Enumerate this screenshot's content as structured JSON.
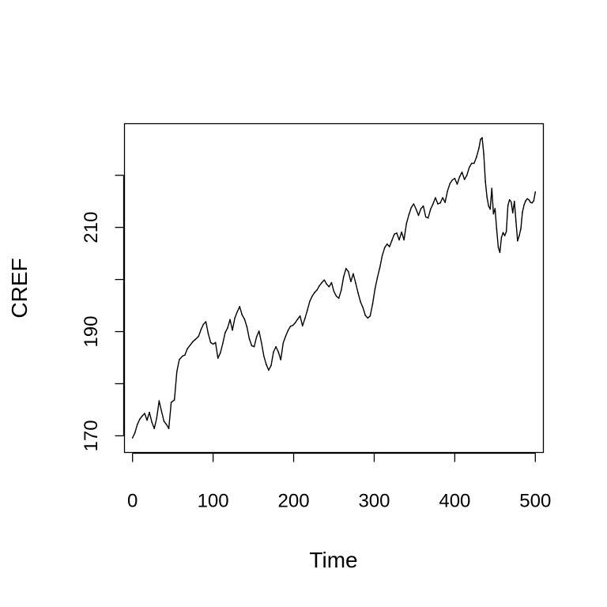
{
  "chart_data": {
    "type": "line",
    "title": "",
    "xlabel": "Time",
    "ylabel": "CREF",
    "xlim": [
      -10,
      510
    ],
    "ylim": [
      166.8,
      229.9
    ],
    "x_ticks": [
      0,
      100,
      200,
      300,
      400,
      500
    ],
    "x_tick_labels": [
      "0",
      "100",
      "200",
      "300",
      "400",
      "500"
    ],
    "y_ticks": [
      170,
      180,
      190,
      200,
      210,
      220
    ],
    "y_tick_labels": [
      "170",
      "",
      "190",
      "",
      "210",
      ""
    ],
    "grid": false,
    "line_color": "#000000",
    "series": [
      {
        "values": [
          [
            0,
            169.6
          ],
          [
            3,
            170.6
          ],
          [
            6,
            172.2
          ],
          [
            9,
            173.2
          ],
          [
            12,
            173.8
          ],
          [
            15,
            174.3
          ],
          [
            18,
            173.0
          ],
          [
            21,
            174.5
          ],
          [
            24,
            172.6
          ],
          [
            27,
            171.4
          ],
          [
            30,
            173.4
          ],
          [
            33,
            176.7
          ],
          [
            36,
            174.7
          ],
          [
            39,
            172.8
          ],
          [
            42,
            172.2
          ],
          [
            45,
            171.4
          ],
          [
            48,
            176.4
          ],
          [
            52,
            176.9
          ],
          [
            55,
            182.3
          ],
          [
            58,
            184.6
          ],
          [
            62,
            185.3
          ],
          [
            65,
            185.5
          ],
          [
            68,
            186.7
          ],
          [
            72,
            187.5
          ],
          [
            75,
            188.1
          ],
          [
            78,
            188.5
          ],
          [
            82,
            189.1
          ],
          [
            85,
            190.4
          ],
          [
            88,
            191.4
          ],
          [
            91,
            191.9
          ],
          [
            94,
            189.6
          ],
          [
            97,
            187.9
          ],
          [
            100,
            187.6
          ],
          [
            103,
            187.9
          ],
          [
            106,
            184.9
          ],
          [
            109,
            185.9
          ],
          [
            112,
            187.7
          ],
          [
            115,
            189.8
          ],
          [
            118,
            190.7
          ],
          [
            121,
            192.3
          ],
          [
            124,
            190.3
          ],
          [
            127,
            192.6
          ],
          [
            130,
            193.8
          ],
          [
            133,
            194.8
          ],
          [
            136,
            193.2
          ],
          [
            139,
            192.4
          ],
          [
            142,
            190.9
          ],
          [
            145,
            188.6
          ],
          [
            148,
            187.3
          ],
          [
            151,
            187.1
          ],
          [
            154,
            189.0
          ],
          [
            157,
            190.1
          ],
          [
            160,
            187.9
          ],
          [
            163,
            185.3
          ],
          [
            166,
            183.7
          ],
          [
            169,
            182.6
          ],
          [
            172,
            183.5
          ],
          [
            175,
            186.1
          ],
          [
            178,
            187.1
          ],
          [
            181,
            186.1
          ],
          [
            184,
            184.6
          ],
          [
            187,
            187.8
          ],
          [
            190,
            189.1
          ],
          [
            193,
            190.2
          ],
          [
            196,
            191.0
          ],
          [
            199,
            191.2
          ],
          [
            202,
            191.7
          ],
          [
            205,
            192.4
          ],
          [
            208,
            193.0
          ],
          [
            211,
            191.1
          ],
          [
            214,
            192.5
          ],
          [
            217,
            194.1
          ],
          [
            220,
            195.8
          ],
          [
            223,
            196.8
          ],
          [
            226,
            197.5
          ],
          [
            229,
            198.0
          ],
          [
            232,
            198.8
          ],
          [
            235,
            199.4
          ],
          [
            238,
            199.9
          ],
          [
            241,
            199.1
          ],
          [
            244,
            198.6
          ],
          [
            247,
            199.4
          ],
          [
            250,
            197.7
          ],
          [
            253,
            196.8
          ],
          [
            256,
            196.4
          ],
          [
            259,
            197.9
          ],
          [
            262,
            200.5
          ],
          [
            265,
            202.1
          ],
          [
            268,
            201.5
          ],
          [
            271,
            199.6
          ],
          [
            274,
            201.1
          ],
          [
            277,
            199.3
          ],
          [
            280,
            197.4
          ],
          [
            283,
            195.7
          ],
          [
            286,
            194.6
          ],
          [
            289,
            193.1
          ],
          [
            292,
            192.6
          ],
          [
            295,
            193.0
          ],
          [
            298,
            195.3
          ],
          [
            301,
            198.2
          ],
          [
            304,
            200.4
          ],
          [
            307,
            202.3
          ],
          [
            310,
            204.6
          ],
          [
            313,
            206.1
          ],
          [
            316,
            206.8
          ],
          [
            319,
            206.3
          ],
          [
            322,
            207.5
          ],
          [
            325,
            208.7
          ],
          [
            328,
            208.9
          ],
          [
            331,
            207.6
          ],
          [
            334,
            209.1
          ],
          [
            337,
            207.6
          ],
          [
            340,
            210.7
          ],
          [
            343,
            212.4
          ],
          [
            346,
            213.8
          ],
          [
            349,
            214.5
          ],
          [
            352,
            213.5
          ],
          [
            355,
            212.3
          ],
          [
            358,
            213.6
          ],
          [
            361,
            214.1
          ],
          [
            364,
            212.0
          ],
          [
            367,
            211.8
          ],
          [
            370,
            213.5
          ],
          [
            373,
            214.5
          ],
          [
            376,
            215.7
          ],
          [
            379,
            214.5
          ],
          [
            382,
            214.7
          ],
          [
            385,
            215.7
          ],
          [
            388,
            214.8
          ],
          [
            391,
            217.0
          ],
          [
            394,
            218.4
          ],
          [
            397,
            219.1
          ],
          [
            400,
            219.4
          ],
          [
            403,
            218.3
          ],
          [
            406,
            219.7
          ],
          [
            409,
            220.6
          ],
          [
            412,
            219.2
          ],
          [
            415,
            220.0
          ],
          [
            418,
            221.5
          ],
          [
            421,
            222.3
          ],
          [
            424,
            222.3
          ],
          [
            427,
            223.5
          ],
          [
            430,
            225.2
          ],
          [
            432,
            226.9
          ],
          [
            434,
            227.2
          ],
          [
            436,
            224.1
          ],
          [
            438,
            218.8
          ],
          [
            440,
            215.8
          ],
          [
            442,
            214.1
          ],
          [
            444,
            213.5
          ],
          [
            446,
            217.5
          ],
          [
            448,
            212.6
          ],
          [
            450,
            213.6
          ],
          [
            452,
            209.7
          ],
          [
            454,
            206.2
          ],
          [
            456,
            205.2
          ],
          [
            458,
            208.1
          ],
          [
            460,
            209.0
          ],
          [
            462,
            208.4
          ],
          [
            464,
            209.2
          ],
          [
            466,
            214.2
          ],
          [
            468,
            215.3
          ],
          [
            470,
            214.9
          ],
          [
            472,
            212.8
          ],
          [
            474,
            215.0
          ],
          [
            476,
            211.1
          ],
          [
            478,
            207.4
          ],
          [
            480,
            208.4
          ],
          [
            482,
            209.7
          ],
          [
            484,
            212.9
          ],
          [
            486,
            214.3
          ],
          [
            488,
            215.1
          ],
          [
            490,
            215.5
          ],
          [
            492,
            215.3
          ],
          [
            494,
            214.8
          ],
          [
            496,
            214.7
          ],
          [
            498,
            215.1
          ],
          [
            500,
            216.8
          ]
        ]
      }
    ]
  }
}
